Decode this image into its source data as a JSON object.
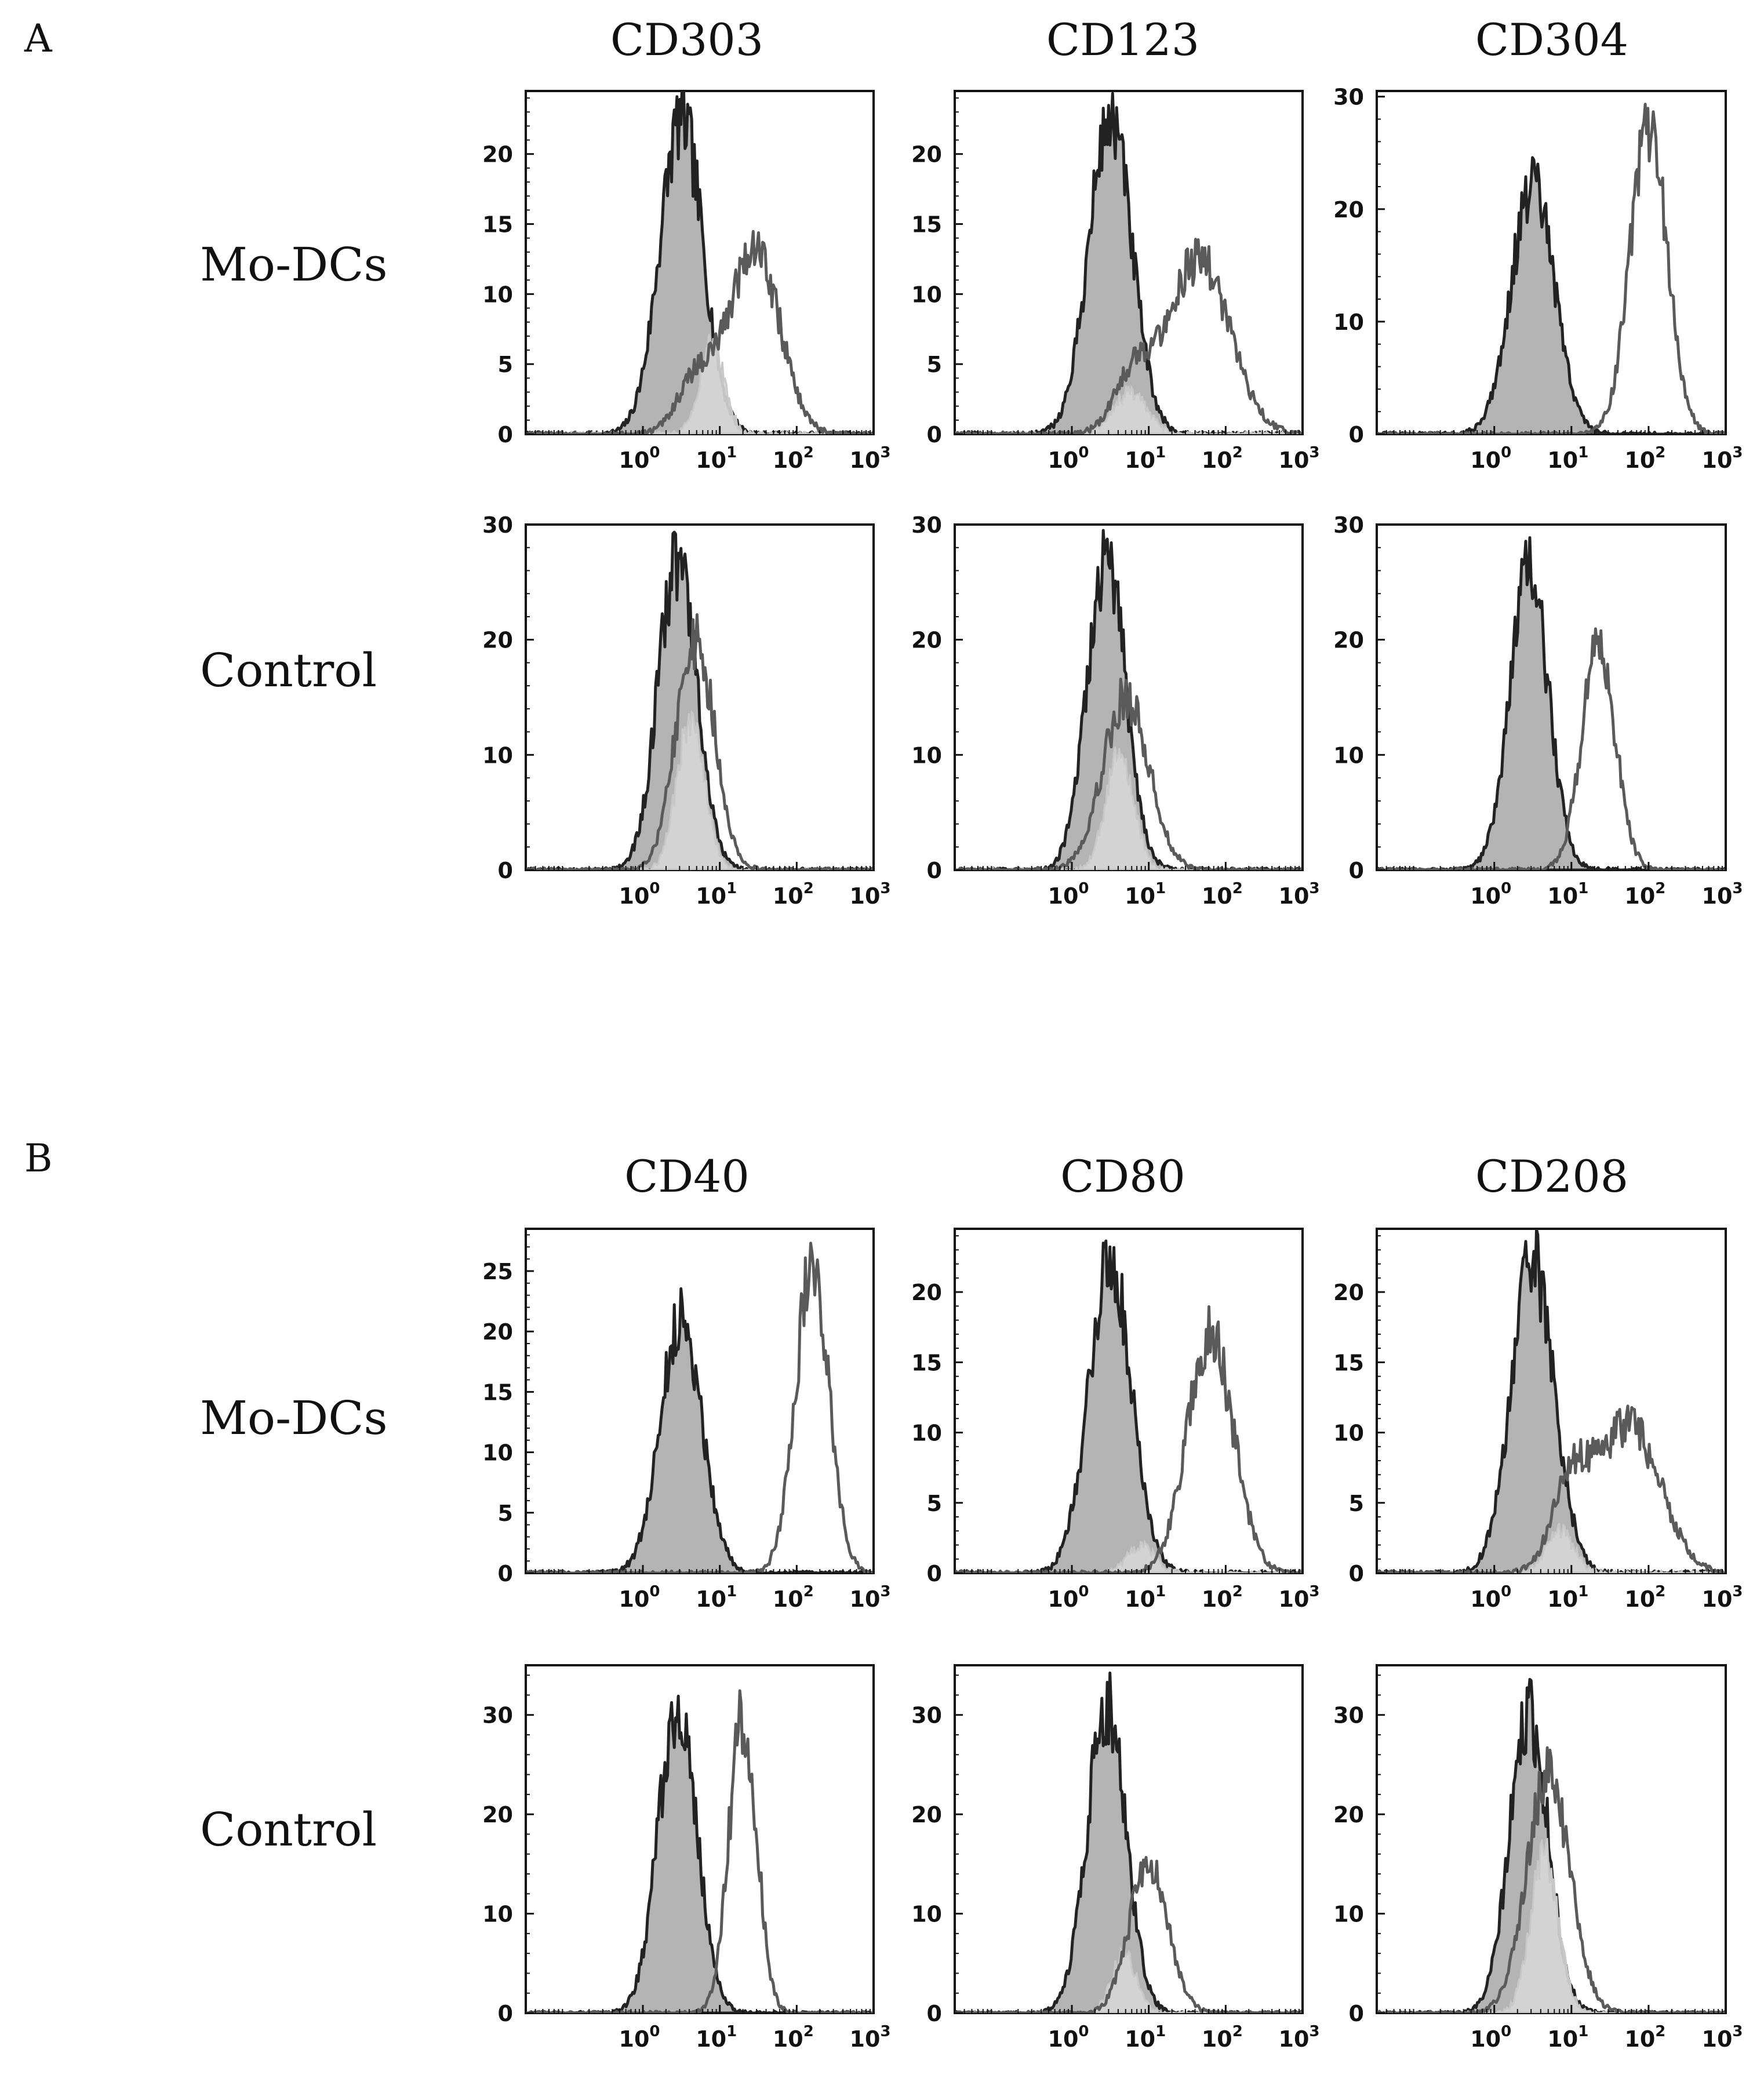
{
  "figure": {
    "panels": [
      {
        "letter": "A",
        "markers": [
          "CD303",
          "CD123",
          "CD304"
        ],
        "rows": [
          "Mo-DCs",
          "Control"
        ]
      },
      {
        "letter": "B",
        "markers": [
          "CD40",
          "CD80",
          "CD208"
        ],
        "rows": [
          "Mo-DCs",
          "Control"
        ]
      }
    ]
  },
  "colors": {
    "isotype_fill": "#b4b4b4",
    "isotype_line": "#222222",
    "control_fill": "#d6d6d6",
    "marker_line": "#5a5a5a"
  },
  "chart_data": [
    {
      "type": "area",
      "panel": "A",
      "marker": "CD303",
      "row": "Mo-DCs",
      "xlabel": "",
      "ylabel": "",
      "xscale": "log",
      "xlim": [
        0.03,
        1000
      ],
      "xticks": [
        1,
        10,
        100,
        1000
      ],
      "ylim": [
        0,
        24.5
      ],
      "yticks": [
        0,
        5,
        10,
        15,
        20
      ],
      "series": [
        {
          "name": "isotype",
          "peak_log": 0.5,
          "sigma": 0.28,
          "height": 22.5
        },
        {
          "name": "light",
          "peak_log": 0.9,
          "sigma": 0.16,
          "height": 6.5
        },
        {
          "name": "marker",
          "peak_log": 1.45,
          "sigma": 0.32,
          "height": 13.5,
          "shoulder_log": 0.7,
          "shoulder_height": 4
        }
      ]
    },
    {
      "type": "area",
      "panel": "A",
      "marker": "CD123",
      "row": "Mo-DCs",
      "xlabel": "",
      "ylabel": "",
      "xscale": "log",
      "xlim": [
        0.03,
        1000
      ],
      "xticks": [
        1,
        10,
        100,
        1000
      ],
      "ylim": [
        0,
        24.5
      ],
      "yticks": [
        0,
        5,
        10,
        15,
        20
      ],
      "series": [
        {
          "name": "isotype",
          "peak_log": 0.5,
          "sigma": 0.28,
          "height": 22.5
        },
        {
          "name": "light",
          "peak_log": 0.75,
          "sigma": 0.22,
          "height": 3
        },
        {
          "name": "marker",
          "peak_log": 1.65,
          "sigma": 0.4,
          "height": 12.5,
          "shoulder_log": 0.8,
          "shoulder_height": 4
        }
      ]
    },
    {
      "type": "area",
      "panel": "A",
      "marker": "CD304",
      "row": "Mo-DCs",
      "xlabel": "",
      "ylabel": "",
      "xscale": "log",
      "xlim": [
        0.03,
        1000
      ],
      "xticks": [
        1,
        10,
        100,
        1000
      ],
      "ylim": [
        0,
        30.5
      ],
      "yticks": [
        0,
        10,
        20,
        30
      ],
      "series": [
        {
          "name": "isotype",
          "peak_log": 0.5,
          "sigma": 0.28,
          "height": 22
        },
        {
          "name": "marker",
          "peak_log": 2.0,
          "sigma": 0.24,
          "height": 27
        }
      ]
    },
    {
      "type": "area",
      "panel": "A",
      "marker": "CD303",
      "row": "Control",
      "xlabel": "",
      "ylabel": "",
      "xscale": "log",
      "xlim": [
        0.03,
        1000
      ],
      "xticks": [
        1,
        10,
        100,
        1000
      ],
      "ylim": [
        0,
        30
      ],
      "yticks": [
        0,
        10,
        20,
        30
      ],
      "series": [
        {
          "name": "isotype",
          "peak_log": 0.45,
          "sigma": 0.25,
          "height": 27
        },
        {
          "name": "light",
          "peak_log": 0.62,
          "sigma": 0.18,
          "height": 13
        },
        {
          "name": "marker",
          "peak_log": 0.68,
          "sigma": 0.25,
          "height": 20
        }
      ]
    },
    {
      "type": "area",
      "panel": "A",
      "marker": "CD123",
      "row": "Control",
      "xlabel": "",
      "ylabel": "",
      "xscale": "log",
      "xlim": [
        0.03,
        1000
      ],
      "xticks": [
        1,
        10,
        100,
        1000
      ],
      "ylim": [
        0,
        30
      ],
      "yticks": [
        0,
        10,
        20,
        30
      ],
      "series": [
        {
          "name": "isotype",
          "peak_log": 0.45,
          "sigma": 0.25,
          "height": 27
        },
        {
          "name": "light",
          "peak_log": 0.62,
          "sigma": 0.18,
          "height": 10
        },
        {
          "name": "marker",
          "peak_log": 0.7,
          "sigma": 0.3,
          "height": 15
        }
      ]
    },
    {
      "type": "area",
      "panel": "A",
      "marker": "CD304",
      "row": "Control",
      "xlabel": "",
      "ylabel": "",
      "xscale": "log",
      "xlim": [
        0.03,
        1000
      ],
      "xticks": [
        1,
        10,
        100,
        1000
      ],
      "ylim": [
        0,
        30
      ],
      "yticks": [
        0,
        10,
        20,
        30
      ],
      "series": [
        {
          "name": "isotype",
          "peak_log": 0.45,
          "sigma": 0.25,
          "height": 26
        },
        {
          "name": "marker",
          "peak_log": 1.35,
          "sigma": 0.22,
          "height": 19
        }
      ]
    },
    {
      "type": "area",
      "panel": "B",
      "marker": "CD40",
      "row": "Mo-DCs",
      "xlabel": "",
      "ylabel": "",
      "xscale": "log",
      "xlim": [
        0.03,
        1000
      ],
      "xticks": [
        1,
        10,
        100,
        1000
      ],
      "ylim": [
        0,
        28.5
      ],
      "yticks": [
        0,
        5,
        10,
        15,
        20,
        25
      ],
      "series": [
        {
          "name": "isotype",
          "peak_log": 0.5,
          "sigma": 0.27,
          "height": 21
        },
        {
          "name": "marker",
          "peak_log": 2.2,
          "sigma": 0.22,
          "height": 25
        }
      ]
    },
    {
      "type": "area",
      "panel": "B",
      "marker": "CD80",
      "row": "Mo-DCs",
      "xlabel": "",
      "ylabel": "",
      "xscale": "log",
      "xlim": [
        0.03,
        1000
      ],
      "xticks": [
        1,
        10,
        100,
        1000
      ],
      "ylim": [
        0,
        24.5
      ],
      "yticks": [
        0,
        5,
        10,
        15,
        20
      ],
      "series": [
        {
          "name": "isotype",
          "peak_log": 0.5,
          "sigma": 0.28,
          "height": 22
        },
        {
          "name": "light",
          "peak_log": 0.9,
          "sigma": 0.18,
          "height": 2
        },
        {
          "name": "marker",
          "peak_log": 1.8,
          "sigma": 0.3,
          "height": 17
        }
      ]
    },
    {
      "type": "area",
      "panel": "B",
      "marker": "CD208",
      "row": "Mo-DCs",
      "xlabel": "",
      "ylabel": "",
      "xscale": "log",
      "xlim": [
        0.03,
        1000
      ],
      "xticks": [
        1,
        10,
        100,
        1000
      ],
      "ylim": [
        0,
        24.5
      ],
      "yticks": [
        0,
        5,
        10,
        15,
        20
      ],
      "series": [
        {
          "name": "isotype",
          "peak_log": 0.5,
          "sigma": 0.28,
          "height": 22
        },
        {
          "name": "light",
          "peak_log": 0.85,
          "sigma": 0.18,
          "height": 3
        },
        {
          "name": "marker",
          "peak_log": 1.75,
          "sigma": 0.4,
          "height": 10.5,
          "shoulder_log": 1.0,
          "shoulder_height": 6
        }
      ]
    },
    {
      "type": "area",
      "panel": "B",
      "marker": "CD40",
      "row": "Control",
      "xlabel": "",
      "ylabel": "",
      "xscale": "log",
      "xlim": [
        0.03,
        1000
      ],
      "xticks": [
        1,
        10,
        100,
        1000
      ],
      "ylim": [
        0,
        35
      ],
      "yticks": [
        0,
        10,
        20,
        30
      ],
      "series": [
        {
          "name": "isotype",
          "peak_log": 0.45,
          "sigma": 0.25,
          "height": 31
        },
        {
          "name": "marker",
          "peak_log": 1.3,
          "sigma": 0.18,
          "height": 30
        }
      ]
    },
    {
      "type": "area",
      "panel": "B",
      "marker": "CD80",
      "row": "Control",
      "xlabel": "",
      "ylabel": "",
      "xscale": "log",
      "xlim": [
        0.03,
        1000
      ],
      "xticks": [
        1,
        10,
        100,
        1000
      ],
      "ylim": [
        0,
        35
      ],
      "yticks": [
        0,
        10,
        20,
        30
      ],
      "series": [
        {
          "name": "isotype",
          "peak_log": 0.45,
          "sigma": 0.25,
          "height": 31
        },
        {
          "name": "light",
          "peak_log": 0.68,
          "sigma": 0.16,
          "height": 6
        },
        {
          "name": "marker",
          "peak_log": 1.0,
          "sigma": 0.25,
          "height": 15
        }
      ]
    },
    {
      "type": "area",
      "panel": "B",
      "marker": "CD208",
      "row": "Control",
      "xlabel": "",
      "ylabel": "",
      "xscale": "log",
      "xlim": [
        0.03,
        1000
      ],
      "xticks": [
        1,
        10,
        100,
        1000
      ],
      "ylim": [
        0,
        35
      ],
      "yticks": [
        0,
        10,
        20,
        30
      ],
      "series": [
        {
          "name": "isotype",
          "peak_log": 0.45,
          "sigma": 0.25,
          "height": 30
        },
        {
          "name": "light",
          "peak_log": 0.65,
          "sigma": 0.18,
          "height": 16
        },
        {
          "name": "marker",
          "peak_log": 0.7,
          "sigma": 0.28,
          "height": 24
        }
      ]
    }
  ]
}
